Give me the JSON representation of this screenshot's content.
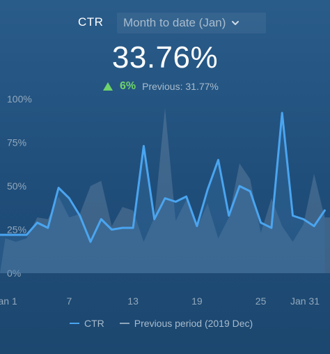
{
  "header": {
    "metric": "CTR",
    "period": "Month to date (Jan)"
  },
  "kpi": {
    "value": "33.76%",
    "delta": "6%",
    "previous": "Previous: 31.77%"
  },
  "colors": {
    "ctr_line": "#4aa5f0",
    "previous_area": "#8ea6ba",
    "delta_positive": "#6fd36a"
  },
  "icons": {
    "select": "chevron-down-icon",
    "delta": "triangle-up-icon"
  },
  "chart_data": {
    "type": "line",
    "x": [
      1,
      2,
      3,
      4,
      5,
      6,
      7,
      8,
      9,
      10,
      11,
      12,
      13,
      14,
      15,
      16,
      17,
      18,
      19,
      20,
      21,
      22,
      23,
      24,
      25,
      26,
      27,
      28,
      29,
      30,
      31
    ],
    "x_tick_labels": [
      "Jan 1",
      "7",
      "13",
      "19",
      "25",
      "Jan 31"
    ],
    "x_tick_positions": [
      1,
      7,
      13,
      19,
      25,
      31
    ],
    "ylim": [
      0,
      100
    ],
    "y_ticks": [
      0,
      25,
      50,
      75,
      100
    ],
    "y_tick_labels": [
      "0%",
      "25%",
      "50%",
      "75%",
      "100%"
    ],
    "grid": false,
    "legend_position": "bottom",
    "series": [
      {
        "name": "CTR",
        "style": "line",
        "values": [
          22,
          22,
          22,
          29,
          26,
          49,
          43,
          33,
          18,
          31,
          25,
          26,
          26,
          73,
          31,
          43,
          41,
          44,
          27,
          48,
          65,
          33,
          50,
          47,
          29,
          26,
          92,
          33,
          31,
          27,
          36
        ]
      },
      {
        "name": "Previous period (2019 Dec)",
        "style": "area",
        "values": [
          20,
          18,
          20,
          32,
          31,
          44,
          32,
          34,
          50,
          53,
          27,
          38,
          36,
          18,
          32,
          95,
          30,
          42,
          26,
          40,
          20,
          32,
          63,
          54,
          23,
          43,
          27,
          18,
          28,
          57,
          32
        ]
      }
    ]
  }
}
